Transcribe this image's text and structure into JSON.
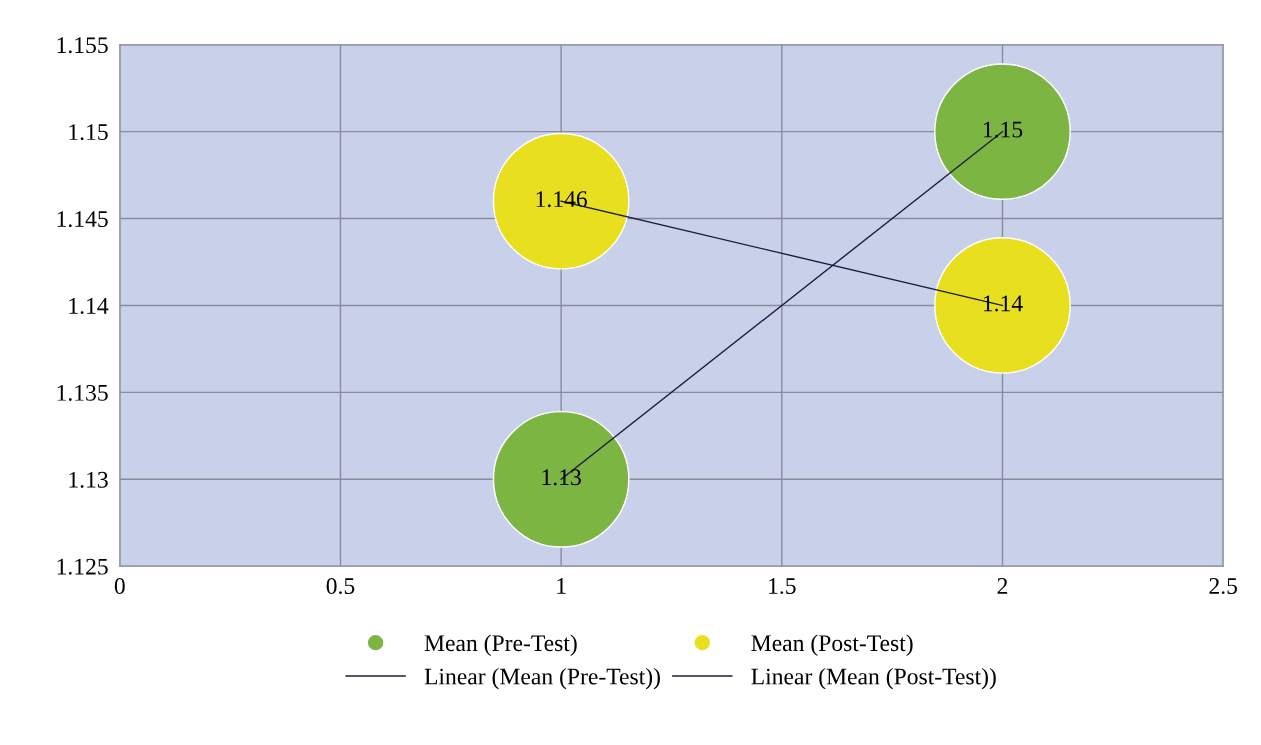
{
  "chart_data": {
    "type": "bubble",
    "grid": true,
    "legend": "bottom",
    "x": [
      1,
      2
    ],
    "xlim": [
      0,
      2.5
    ],
    "xticks": [
      0,
      0.5,
      1,
      1.5,
      2,
      2.5
    ],
    "ylim": [
      1.125,
      1.155
    ],
    "yticks": [
      1.125,
      1.13,
      1.135,
      1.14,
      1.145,
      1.15,
      1.155
    ],
    "series": [
      {
        "name": "Mean (Pre-Test)",
        "color": "#7db543",
        "values": [
          1.13,
          1.15
        ],
        "sizes": [
          1,
          1
        ],
        "data_labels": true
      },
      {
        "name": "Mean (Post-Test)",
        "color": "#e8e01e",
        "values": [
          1.146,
          1.14
        ],
        "sizes": [
          1,
          1
        ],
        "data_labels": true
      },
      {
        "name": "Linear (Mean (Pre-Test))",
        "type": "line",
        "marker": "none",
        "color": "#1c1c3c",
        "values": [
          1.13,
          1.15
        ]
      },
      {
        "name": "Linear (Mean (Post-Test))",
        "type": "line",
        "marker": "none",
        "color": "#1c1c3c",
        "values": [
          1.146,
          1.14
        ]
      }
    ]
  }
}
